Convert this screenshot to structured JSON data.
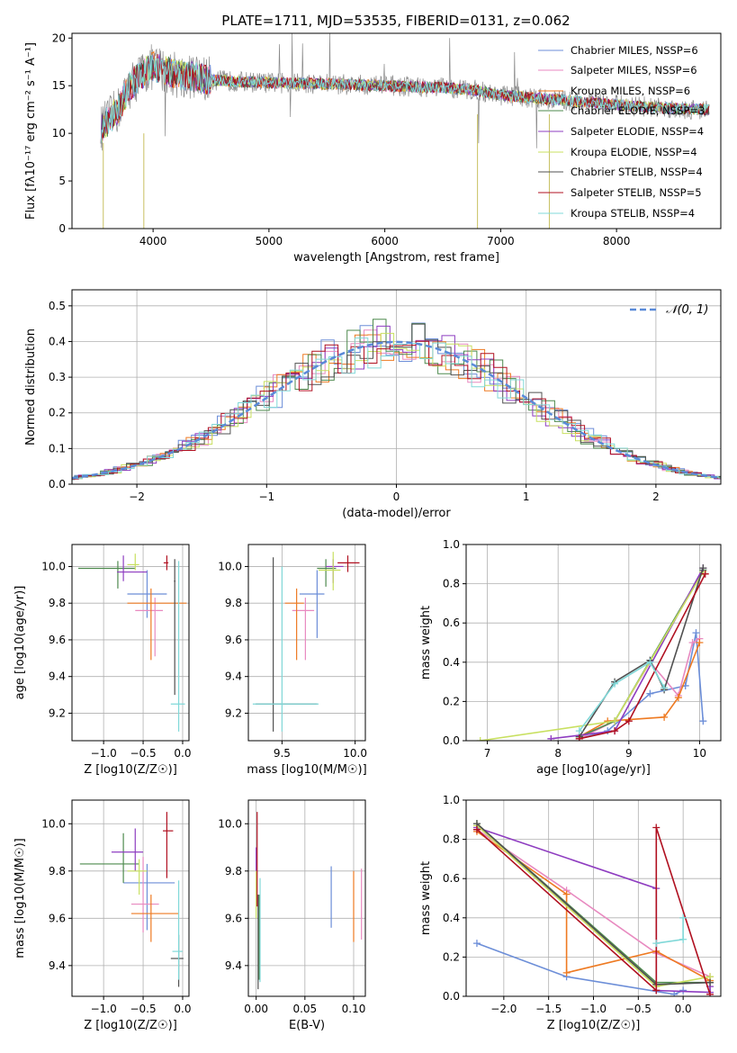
{
  "figure_title": "PLATE=1711, MJD=53535, FIBERID=0131, z=0.062",
  "series_colors": [
    "#6c8ed8",
    "#e88ac0",
    "#ee7a22",
    "#4e8a4e",
    "#8e3cc0",
    "#c8e060",
    "#505050",
    "#b01020",
    "#80d8d8"
  ],
  "chart_data": [
    {
      "id": "spectrum",
      "type": "line",
      "xlabel": "wavelength [Angstrom, rest frame]",
      "ylabel": "Flux [fλ10⁻¹⁷ erg cm⁻² s⁻¹ A⁻¹]",
      "xlim": [
        3300,
        8900
      ],
      "ylim": [
        0,
        20.5
      ],
      "xticks": [
        4000,
        5000,
        6000,
        7000,
        8000
      ],
      "yticks": [
        0,
        5,
        10,
        15,
        20
      ],
      "grid": false,
      "legend_position": "top-right",
      "legend": [
        "Chabrier MILES, NSSP=6",
        "Salpeter MILES, NSSP=6",
        "Kroupa MILES, NSSP=6",
        "Chabrier ELODIE, NSSP=3",
        "Salpeter ELODIE, NSSP=4",
        "Kroupa ELODIE, NSSP=4",
        "Chabrier STELIB, NSSP=4",
        "Salpeter STELIB, NSSP=5",
        "Kroupa STELIB, NSSP=4"
      ],
      "continuum": {
        "x": [
          3550,
          3700,
          3800,
          3900,
          4000,
          4200,
          4500,
          4800,
          5000,
          5500,
          6000,
          6500,
          6800,
          7000,
          7500,
          8000,
          8500,
          8800
        ],
        "y": [
          10.5,
          12.5,
          15.0,
          16.2,
          17.0,
          16.2,
          15.6,
          15.4,
          15.3,
          15.2,
          15.0,
          14.8,
          14.5,
          14.0,
          13.5,
          13.0,
          12.6,
          12.5
        ]
      }
    },
    {
      "id": "residuals",
      "type": "step",
      "xlabel": "(data-model)/error",
      "ylabel": "Normed distribution",
      "xlim": [
        -2.5,
        2.5
      ],
      "ylim": [
        0,
        0.545
      ],
      "xticks": [
        -2,
        -1,
        0,
        1,
        2
      ],
      "yticks": [
        0.0,
        0.1,
        0.2,
        0.3,
        0.4,
        0.5
      ],
      "grid": true,
      "legend_position": "top-right",
      "legend": [
        "𝒩(0, 1)"
      ],
      "gaussian": {
        "mean": 0,
        "sigma": 1
      }
    },
    {
      "id": "age_vs_Z",
      "type": "errorbar",
      "xlabel": "Z [log10(Z/Z☉)]",
      "ylabel": "age  [log10(age/yr)]",
      "xlim": [
        -1.4,
        0.08
      ],
      "ylim": [
        9.05,
        10.12
      ],
      "xticks": [
        -1.0,
        -0.5,
        0.0
      ],
      "yticks": [
        9.2,
        9.4,
        9.6,
        9.8,
        10.0
      ],
      "grid": true,
      "points": [
        {
          "x": -0.45,
          "y": 9.85,
          "xerr": [
            0.25,
            0.25
          ],
          "yerr": [
            0.13,
            0.13
          ]
        },
        {
          "x": -0.35,
          "y": 9.76,
          "xerr": [
            0.25,
            0.1
          ],
          "yerr": [
            0.25,
            0.07
          ]
        },
        {
          "x": -0.4,
          "y": 9.8,
          "xerr": [
            0.3,
            0.45
          ],
          "yerr": [
            0.31,
            0.08
          ]
        },
        {
          "x": -0.82,
          "y": 9.99,
          "xerr": [
            0.5,
            0.22
          ],
          "yerr": [
            0.11,
            0.04
          ]
        },
        {
          "x": -0.75,
          "y": 9.97,
          "xerr": [
            0.08,
            0.3
          ],
          "yerr": [
            0.05,
            0.09
          ]
        },
        {
          "x": -0.6,
          "y": 10.01,
          "xerr": [
            0.1,
            0.05
          ],
          "yerr": [
            0.03,
            0.06
          ]
        },
        {
          "x": -0.1,
          "y": 9.92,
          "xerr": [
            0.01,
            0.01
          ],
          "yerr": [
            0.62,
            0.12
          ]
        },
        {
          "x": -0.2,
          "y": 10.02,
          "xerr": [
            0.04,
            0.02
          ],
          "yerr": [
            0.04,
            0.04
          ]
        },
        {
          "x": -0.05,
          "y": 9.25,
          "xerr": [
            0.1,
            0.08
          ],
          "yerr": [
            0.15,
            0.78
          ]
        }
      ]
    },
    {
      "id": "age_vs_mass",
      "type": "errorbar",
      "xlabel": "mass [log10(M/M☉)]",
      "ylabel": "",
      "xlim": [
        9.27,
        10.07
      ],
      "ylim": [
        9.05,
        10.12
      ],
      "xticks": [
        9.5,
        10.0
      ],
      "yticks": [
        9.2,
        9.4,
        9.6,
        9.8,
        10.0
      ],
      "grid": true,
      "points": [
        {
          "x": 9.74,
          "y": 9.85,
          "xerr": [
            0.12,
            0.05
          ],
          "yerr": [
            0.24,
            0.13
          ]
        },
        {
          "x": 9.66,
          "y": 9.76,
          "xerr": [
            0.09,
            0.06
          ],
          "yerr": [
            0.27,
            0.07
          ]
        },
        {
          "x": 9.6,
          "y": 9.8,
          "xerr": [
            0.08,
            0.05
          ],
          "yerr": [
            0.31,
            0.08
          ]
        },
        {
          "x": 9.8,
          "y": 9.99,
          "xerr": [
            0.06,
            0.07
          ],
          "yerr": [
            0.1,
            0.05
          ]
        },
        {
          "x": 9.85,
          "y": 10.0,
          "xerr": [
            0.05,
            0.07
          ],
          "yerr": [
            0.09,
            0.04
          ]
        },
        {
          "x": 9.85,
          "y": 9.98,
          "xerr": [
            0.1,
            0.05
          ],
          "yerr": [
            0.11,
            0.1
          ]
        },
        {
          "x": 9.44,
          "y": 9.25,
          "xerr": [
            0.12,
            0.3
          ],
          "yerr": [
            0.15,
            0.8
          ]
        },
        {
          "x": 9.95,
          "y": 10.02,
          "xerr": [
            0.07,
            0.08
          ],
          "yerr": [
            0.05,
            0.04
          ]
        },
        {
          "x": 9.5,
          "y": 9.25,
          "xerr": [
            0.2,
            0.25
          ],
          "yerr": [
            0.15,
            0.75
          ]
        }
      ]
    },
    {
      "id": "weight_vs_age",
      "type": "line",
      "xlabel": "age  [log10(age/yr)]",
      "ylabel": "mass weight",
      "xlim": [
        6.7,
        10.3
      ],
      "ylim": [
        0,
        1.0
      ],
      "xticks": [
        7,
        8,
        9,
        10
      ],
      "yticks": [
        0.0,
        0.2,
        0.4,
        0.6,
        0.8,
        1.0
      ],
      "grid": true,
      "series": [
        {
          "x": [
            8.3,
            8.7,
            9.3,
            9.8,
            9.95,
            10.05
          ],
          "y": [
            0.01,
            0.05,
            0.24,
            0.28,
            0.55,
            0.1
          ]
        },
        {
          "x": [
            8.3,
            8.8,
            9.3,
            9.7,
            9.9,
            10.0
          ],
          "y": [
            0.01,
            0.1,
            0.4,
            0.23,
            0.5,
            0.52
          ]
        },
        {
          "x": [
            8.3,
            8.7,
            9.5,
            9.7,
            10.0
          ],
          "y": [
            0.02,
            0.1,
            0.12,
            0.22,
            0.5
          ]
        },
        {
          "x": [
            8.3,
            8.8,
            10.05
          ],
          "y": [
            0.02,
            0.1,
            0.87
          ]
        },
        {
          "x": [
            7.9,
            8.8,
            10.05
          ],
          "y": [
            0.01,
            0.05,
            0.88
          ]
        },
        {
          "x": [
            6.9,
            8.8,
            10.05
          ],
          "y": [
            0.0,
            0.1,
            0.86
          ]
        },
        {
          "x": [
            8.3,
            8.8,
            9.3,
            9.5,
            10.05
          ],
          "y": [
            0.02,
            0.3,
            0.41,
            0.26,
            0.88
          ]
        },
        {
          "x": [
            8.3,
            8.8,
            9.0,
            10.08
          ],
          "y": [
            0.01,
            0.05,
            0.1,
            0.85
          ]
        },
        {
          "x": [
            8.3,
            8.8,
            9.3,
            9.5
          ],
          "y": [
            0.05,
            0.29,
            0.4,
            0.27
          ]
        }
      ]
    },
    {
      "id": "mass_vs_Z",
      "type": "errorbar",
      "xlabel": "Z [log10(Z/Z☉)]",
      "ylabel": "mass [log10(M/M☉)]",
      "xlim": [
        -1.4,
        0.08
      ],
      "ylim": [
        9.27,
        10.1
      ],
      "xticks": [
        -1.0,
        -0.5,
        0.0
      ],
      "yticks": [
        9.4,
        9.6,
        9.8,
        10.0
      ],
      "grid": true,
      "points": [
        {
          "x": -0.45,
          "y": 9.75,
          "xerr": [
            0.3,
            0.35
          ],
          "yerr": [
            0.2,
            0.08
          ]
        },
        {
          "x": -0.5,
          "y": 9.66,
          "xerr": [
            0.15,
            0.2
          ],
          "yerr": [
            0.12,
            0.2
          ]
        },
        {
          "x": -0.4,
          "y": 9.62,
          "xerr": [
            0.25,
            0.35
          ],
          "yerr": [
            0.12,
            0.08
          ]
        },
        {
          "x": -0.75,
          "y": 9.83,
          "xerr": [
            0.55,
            0.2
          ],
          "yerr": [
            0.08,
            0.13
          ]
        },
        {
          "x": -0.6,
          "y": 9.88,
          "xerr": [
            0.3,
            0.1
          ],
          "yerr": [
            0.08,
            0.1
          ]
        },
        {
          "x": -0.55,
          "y": 9.8,
          "xerr": [
            0.15,
            0.1
          ],
          "yerr": [
            0.1,
            0.05
          ]
        },
        {
          "x": -0.05,
          "y": 9.43,
          "xerr": [
            0.1,
            0.06
          ],
          "yerr": [
            0.12,
            0.1
          ]
        },
        {
          "x": -0.2,
          "y": 9.97,
          "xerr": [
            0.05,
            0.08
          ],
          "yerr": [
            0.2,
            0.08
          ]
        },
        {
          "x": -0.05,
          "y": 9.46,
          "xerr": [
            0.08,
            0.05
          ],
          "yerr": [
            0.12,
            0.3
          ]
        }
      ]
    },
    {
      "id": "mass_vs_ebv",
      "type": "errorbar",
      "xlabel": "E(B-V)",
      "ylabel": "",
      "xlim": [
        -0.008,
        0.112
      ],
      "ylim": [
        9.27,
        10.1
      ],
      "xticks": [
        0.0,
        0.05,
        0.1
      ],
      "yticks": [
        9.4,
        9.6,
        9.8,
        10.0
      ],
      "grid": true,
      "points": [
        {
          "x": 0.077,
          "y": 9.69,
          "xerr": [
            0,
            0
          ],
          "yerr": [
            0.13,
            0.13
          ]
        },
        {
          "x": 0.108,
          "y": 9.66,
          "xerr": [
            0,
            0
          ],
          "yerr": [
            0.15,
            0.15
          ]
        },
        {
          "x": 0.1,
          "y": 9.65,
          "xerr": [
            0,
            0
          ],
          "yerr": [
            0.15,
            0.15
          ]
        },
        {
          "x": 0.003,
          "y": 9.52,
          "xerr": [
            0,
            0
          ],
          "yerr": [
            0.18,
            0.18
          ]
        },
        {
          "x": 0.0,
          "y": 9.85,
          "xerr": [
            0,
            0
          ],
          "yerr": [
            0.05,
            0.05
          ]
        },
        {
          "x": 0.0,
          "y": 9.7,
          "xerr": [
            0,
            0
          ],
          "yerr": [
            0.1,
            0.1
          ]
        },
        {
          "x": 0.002,
          "y": 9.5,
          "xerr": [
            0,
            0
          ],
          "yerr": [
            0.2,
            0.2
          ]
        },
        {
          "x": 0.001,
          "y": 9.85,
          "xerr": [
            0,
            0
          ],
          "yerr": [
            0.2,
            0.2
          ]
        },
        {
          "x": 0.004,
          "y": 9.55,
          "xerr": [
            0,
            0
          ],
          "yerr": [
            0.22,
            0.22
          ]
        }
      ]
    },
    {
      "id": "weight_vs_Z",
      "type": "line",
      "xlabel": "Z [log10(Z/Z☉)]",
      "ylabel": "mass weight",
      "xlim": [
        -2.42,
        0.42
      ],
      "ylim": [
        0,
        1.0
      ],
      "xticks": [
        -2.0,
        -1.5,
        -1.0,
        -0.5,
        0.0
      ],
      "yticks": [
        0.0,
        0.2,
        0.4,
        0.6,
        0.8,
        1.0
      ],
      "grid": true,
      "series": [
        {
          "x": [
            -2.3,
            -1.3,
            -0.1,
            0.0
          ],
          "y": [
            0.27,
            0.1,
            0.01,
            0.03
          ]
        },
        {
          "x": [
            -2.3,
            -1.3,
            -0.3,
            0.3
          ],
          "y": [
            0.85,
            0.54,
            0.22,
            0.1
          ]
        },
        {
          "x": [
            -2.3,
            -1.3,
            -1.3,
            -0.3,
            0.3
          ],
          "y": [
            0.84,
            0.52,
            0.12,
            0.23,
            0.08
          ]
        },
        {
          "x": [
            -2.3,
            -0.3,
            0.3
          ],
          "y": [
            0.88,
            0.07,
            0.07
          ]
        },
        {
          "x": [
            -2.3,
            -0.3,
            -0.3,
            0.3,
            0.3
          ],
          "y": [
            0.86,
            0.55,
            0.03,
            0.02,
            0.05
          ]
        },
        {
          "x": [
            -2.3,
            -0.3,
            0.3
          ],
          "y": [
            0.87,
            0.05,
            0.1
          ]
        },
        {
          "x": [
            -2.3,
            -0.3,
            0.3
          ],
          "y": [
            0.88,
            0.06,
            0.07
          ]
        },
        {
          "x": [
            -2.3,
            -0.3,
            -0.3,
            0.3
          ],
          "y": [
            0.85,
            0.03,
            0.86,
            0.01
          ]
        },
        {
          "x": [
            -0.3,
            0.0,
            0.0
          ],
          "y": [
            0.27,
            0.29,
            0.4
          ]
        }
      ]
    }
  ]
}
